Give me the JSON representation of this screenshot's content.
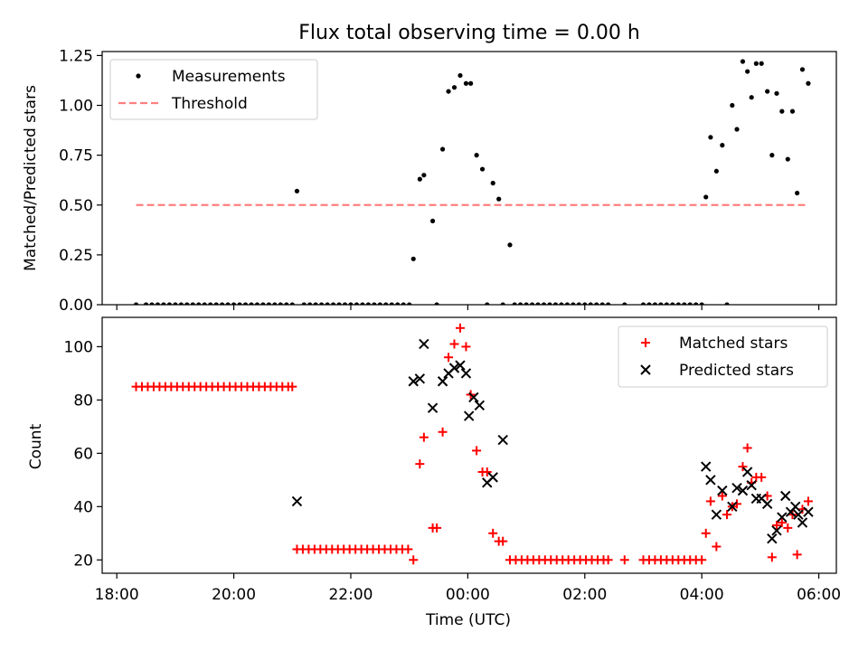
{
  "chart_data": [
    {
      "type": "scatter",
      "title": "Flux total observing time = 0.00 h",
      "xlabel": "",
      "ylabel": "Matched/Predicted stars",
      "xlim": [
        17.75,
        30.3
      ],
      "ylim": [
        0.0,
        1.27
      ],
      "yticks": [
        0.0,
        0.25,
        0.5,
        0.75,
        1.0,
        1.25
      ],
      "ytick_labels": [
        "0.00",
        "0.25",
        "0.50",
        "0.75",
        "1.00",
        "1.25"
      ],
      "legend_position": "top-left",
      "series": [
        {
          "name": "Measurements",
          "marker": "dot",
          "color": "#000000",
          "points": [
            [
              18.33,
              0
            ],
            [
              18.5,
              0
            ],
            [
              18.6,
              0
            ],
            [
              18.7,
              0
            ],
            [
              18.8,
              0
            ],
            [
              18.9,
              0
            ],
            [
              19.0,
              0
            ],
            [
              19.1,
              0
            ],
            [
              19.2,
              0
            ],
            [
              19.3,
              0
            ],
            [
              19.4,
              0
            ],
            [
              19.5,
              0
            ],
            [
              19.6,
              0
            ],
            [
              19.7,
              0
            ],
            [
              19.8,
              0
            ],
            [
              19.9,
              0
            ],
            [
              20.0,
              0
            ],
            [
              20.1,
              0
            ],
            [
              20.2,
              0
            ],
            [
              20.3,
              0
            ],
            [
              20.4,
              0
            ],
            [
              20.5,
              0
            ],
            [
              20.6,
              0
            ],
            [
              20.7,
              0
            ],
            [
              20.8,
              0
            ],
            [
              20.9,
              0
            ],
            [
              21.0,
              0
            ],
            [
              21.08,
              0.57
            ],
            [
              21.2,
              0
            ],
            [
              21.3,
              0
            ],
            [
              21.4,
              0
            ],
            [
              21.5,
              0
            ],
            [
              21.6,
              0
            ],
            [
              21.7,
              0
            ],
            [
              21.8,
              0
            ],
            [
              21.9,
              0
            ],
            [
              22.0,
              0
            ],
            [
              22.1,
              0
            ],
            [
              22.2,
              0
            ],
            [
              22.3,
              0
            ],
            [
              22.4,
              0
            ],
            [
              22.5,
              0
            ],
            [
              22.6,
              0
            ],
            [
              22.7,
              0
            ],
            [
              22.8,
              0
            ],
            [
              22.9,
              0
            ],
            [
              23.0,
              0
            ],
            [
              23.07,
              0.23
            ],
            [
              23.18,
              0.63
            ],
            [
              23.25,
              0.65
            ],
            [
              23.4,
              0.42
            ],
            [
              23.47,
              0
            ],
            [
              23.57,
              0.78
            ],
            [
              23.67,
              1.07
            ],
            [
              23.77,
              1.09
            ],
            [
              23.87,
              1.15
            ],
            [
              23.97,
              1.11
            ],
            [
              24.05,
              1.11
            ],
            [
              24.15,
              0.75
            ],
            [
              24.25,
              0.68
            ],
            [
              24.33,
              0
            ],
            [
              24.43,
              0.61
            ],
            [
              24.53,
              0.53
            ],
            [
              24.6,
              0
            ],
            [
              24.72,
              0.3
            ],
            [
              24.8,
              0
            ],
            [
              24.9,
              0
            ],
            [
              25.0,
              0
            ],
            [
              25.1,
              0
            ],
            [
              25.2,
              0
            ],
            [
              25.3,
              0
            ],
            [
              25.4,
              0
            ],
            [
              25.5,
              0
            ],
            [
              25.6,
              0
            ],
            [
              25.7,
              0
            ],
            [
              25.8,
              0
            ],
            [
              25.9,
              0
            ],
            [
              26.0,
              0
            ],
            [
              26.1,
              0
            ],
            [
              26.2,
              0
            ],
            [
              26.3,
              0
            ],
            [
              26.4,
              0
            ],
            [
              26.68,
              0
            ],
            [
              27.0,
              0
            ],
            [
              27.1,
              0
            ],
            [
              27.2,
              0
            ],
            [
              27.3,
              0
            ],
            [
              27.4,
              0
            ],
            [
              27.5,
              0
            ],
            [
              27.6,
              0
            ],
            [
              27.7,
              0
            ],
            [
              27.8,
              0
            ],
            [
              27.9,
              0
            ],
            [
              28.0,
              0
            ],
            [
              28.07,
              0.54
            ],
            [
              28.15,
              0.84
            ],
            [
              28.25,
              0.67
            ],
            [
              28.35,
              0.8
            ],
            [
              28.43,
              0
            ],
            [
              28.52,
              1.0
            ],
            [
              28.6,
              0.88
            ],
            [
              28.7,
              1.22
            ],
            [
              28.78,
              1.17
            ],
            [
              28.85,
              1.04
            ],
            [
              28.93,
              1.21
            ],
            [
              29.02,
              1.21
            ],
            [
              29.12,
              1.07
            ],
            [
              29.2,
              0.75
            ],
            [
              29.28,
              1.06
            ],
            [
              29.37,
              0.97
            ],
            [
              29.47,
              0.73
            ],
            [
              29.55,
              0.97
            ],
            [
              29.63,
              0.56
            ],
            [
              29.72,
              1.18
            ],
            [
              29.82,
              1.11
            ]
          ]
        },
        {
          "name": "Threshold",
          "marker": "dashed-line",
          "color": "#ff7f7f",
          "points": [
            [
              18.33,
              0.5
            ],
            [
              29.82,
              0.5
            ]
          ]
        }
      ]
    },
    {
      "type": "scatter",
      "title": "",
      "xlabel": "Time (UTC)",
      "ylabel": "Count",
      "xlim": [
        17.75,
        30.3
      ],
      "ylim": [
        15.0,
        111.0
      ],
      "yticks": [
        20,
        40,
        60,
        80,
        100
      ],
      "ytick_labels": [
        "20",
        "40",
        "60",
        "80",
        "100"
      ],
      "xticks": [
        18,
        20,
        22,
        24,
        26,
        28,
        30
      ],
      "xtick_labels": [
        "18:00",
        "20:00",
        "22:00",
        "00:00",
        "02:00",
        "04:00",
        "06:00"
      ],
      "legend_position": "top-right",
      "series": [
        {
          "name": "Matched stars",
          "marker": "plus",
          "color": "#ff0000",
          "points": [
            [
              18.33,
              85
            ],
            [
              18.43,
              85
            ],
            [
              18.53,
              85
            ],
            [
              18.63,
              85
            ],
            [
              18.73,
              85
            ],
            [
              18.83,
              85
            ],
            [
              18.93,
              85
            ],
            [
              19.03,
              85
            ],
            [
              19.13,
              85
            ],
            [
              19.23,
              85
            ],
            [
              19.33,
              85
            ],
            [
              19.43,
              85
            ],
            [
              19.53,
              85
            ],
            [
              19.63,
              85
            ],
            [
              19.73,
              85
            ],
            [
              19.83,
              85
            ],
            [
              19.93,
              85
            ],
            [
              20.03,
              85
            ],
            [
              20.13,
              85
            ],
            [
              20.23,
              85
            ],
            [
              20.33,
              85
            ],
            [
              20.43,
              85
            ],
            [
              20.53,
              85
            ],
            [
              20.63,
              85
            ],
            [
              20.73,
              85
            ],
            [
              20.83,
              85
            ],
            [
              20.93,
              85
            ],
            [
              21.0,
              85
            ],
            [
              21.08,
              24
            ],
            [
              21.18,
              24
            ],
            [
              21.28,
              24
            ],
            [
              21.38,
              24
            ],
            [
              21.48,
              24
            ],
            [
              21.58,
              24
            ],
            [
              21.68,
              24
            ],
            [
              21.78,
              24
            ],
            [
              21.88,
              24
            ],
            [
              21.98,
              24
            ],
            [
              22.08,
              24
            ],
            [
              22.18,
              24
            ],
            [
              22.28,
              24
            ],
            [
              22.38,
              24
            ],
            [
              22.48,
              24
            ],
            [
              22.58,
              24
            ],
            [
              22.68,
              24
            ],
            [
              22.78,
              24
            ],
            [
              22.88,
              24
            ],
            [
              22.98,
              24
            ],
            [
              23.07,
              20
            ],
            [
              23.18,
              56
            ],
            [
              23.25,
              66
            ],
            [
              23.4,
              32
            ],
            [
              23.47,
              32
            ],
            [
              23.57,
              68
            ],
            [
              23.67,
              96
            ],
            [
              23.77,
              101
            ],
            [
              23.87,
              107
            ],
            [
              23.97,
              100
            ],
            [
              24.05,
              82
            ],
            [
              24.15,
              61
            ],
            [
              24.25,
              53
            ],
            [
              24.33,
              53
            ],
            [
              24.43,
              30
            ],
            [
              24.53,
              27
            ],
            [
              24.6,
              27
            ],
            [
              24.72,
              20
            ],
            [
              24.82,
              20
            ],
            [
              24.92,
              20
            ],
            [
              25.02,
              20
            ],
            [
              25.12,
              20
            ],
            [
              25.22,
              20
            ],
            [
              25.32,
              20
            ],
            [
              25.42,
              20
            ],
            [
              25.52,
              20
            ],
            [
              25.62,
              20
            ],
            [
              25.72,
              20
            ],
            [
              25.82,
              20
            ],
            [
              25.92,
              20
            ],
            [
              26.02,
              20
            ],
            [
              26.12,
              20
            ],
            [
              26.22,
              20
            ],
            [
              26.32,
              20
            ],
            [
              26.4,
              20
            ],
            [
              26.68,
              20
            ],
            [
              27.0,
              20
            ],
            [
              27.1,
              20
            ],
            [
              27.2,
              20
            ],
            [
              27.3,
              20
            ],
            [
              27.4,
              20
            ],
            [
              27.5,
              20
            ],
            [
              27.6,
              20
            ],
            [
              27.7,
              20
            ],
            [
              27.8,
              20
            ],
            [
              27.9,
              20
            ],
            [
              28.0,
              20
            ],
            [
              28.07,
              30
            ],
            [
              28.15,
              42
            ],
            [
              28.25,
              25
            ],
            [
              28.35,
              44
            ],
            [
              28.43,
              37
            ],
            [
              28.52,
              40
            ],
            [
              28.6,
              41
            ],
            [
              28.7,
              55
            ],
            [
              28.78,
              62
            ],
            [
              28.85,
              49
            ],
            [
              28.93,
              51
            ],
            [
              29.02,
              51
            ],
            [
              29.12,
              44
            ],
            [
              29.2,
              21
            ],
            [
              29.28,
              33
            ],
            [
              29.37,
              34
            ],
            [
              29.47,
              32
            ],
            [
              29.55,
              37
            ],
            [
              29.63,
              22
            ],
            [
              29.72,
              39
            ],
            [
              29.82,
              42
            ]
          ]
        },
        {
          "name": "Predicted stars",
          "marker": "x",
          "color": "#000000",
          "points": [
            [
              21.08,
              42
            ],
            [
              23.07,
              87
            ],
            [
              23.18,
              88
            ],
            [
              23.25,
              101
            ],
            [
              23.4,
              77
            ],
            [
              23.57,
              87
            ],
            [
              23.67,
              90
            ],
            [
              23.77,
              92
            ],
            [
              23.87,
              93
            ],
            [
              23.97,
              90
            ],
            [
              24.02,
              74
            ],
            [
              24.1,
              81
            ],
            [
              24.2,
              78
            ],
            [
              24.33,
              49
            ],
            [
              24.43,
              51
            ],
            [
              24.6,
              65
            ],
            [
              28.07,
              55
            ],
            [
              28.15,
              50
            ],
            [
              28.25,
              37
            ],
            [
              28.35,
              46
            ],
            [
              28.52,
              40
            ],
            [
              28.6,
              47
            ],
            [
              28.7,
              46
            ],
            [
              28.78,
              53
            ],
            [
              28.85,
              48
            ],
            [
              28.93,
              43
            ],
            [
              29.02,
              43
            ],
            [
              29.12,
              41
            ],
            [
              29.2,
              28
            ],
            [
              29.28,
              31
            ],
            [
              29.37,
              36
            ],
            [
              29.43,
              44
            ],
            [
              29.52,
              38
            ],
            [
              29.6,
              40
            ],
            [
              29.65,
              37
            ],
            [
              29.72,
              34
            ],
            [
              29.82,
              38
            ]
          ]
        }
      ]
    }
  ]
}
